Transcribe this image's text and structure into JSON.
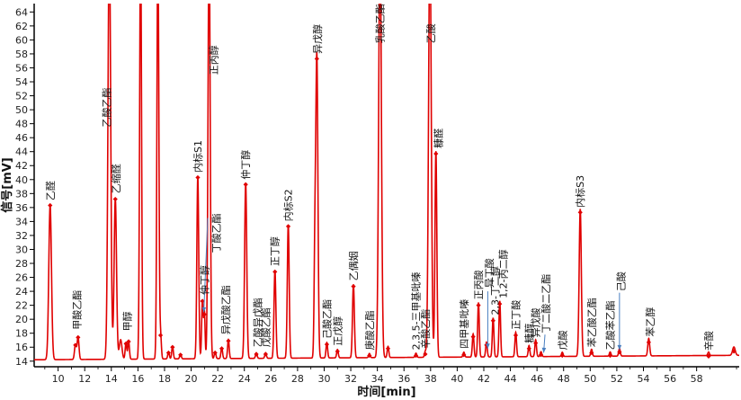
{
  "chart_data": {
    "type": "line",
    "title": "",
    "xlabel": "时间[min]",
    "ylabel": "信号[mV]",
    "xlim": [
      8.2,
      61.2
    ],
    "ylim": [
      13.2,
      65.2
    ],
    "x_ticks": [
      "10",
      "12",
      "14",
      "16",
      "18",
      "20",
      "22",
      "24",
      "26",
      "28",
      "30",
      "32",
      "34",
      "36",
      "38",
      "40",
      "42",
      "44",
      "46",
      "48",
      "50",
      "52",
      "54",
      "56",
      "58"
    ],
    "y_ticks": [
      "14",
      "16",
      "18",
      "20",
      "22",
      "24",
      "26",
      "28",
      "30",
      "32",
      "34",
      "36",
      "38",
      "40",
      "42",
      "44",
      "46",
      "48",
      "50",
      "52",
      "54",
      "56",
      "58",
      "60",
      "62",
      "64"
    ],
    "grid": false,
    "line_color": "#e00000",
    "marker_color": "#e00000",
    "arrow_color": "#4a7fc0",
    "baseline": 14.2,
    "peaks": [
      {
        "x": 9.4,
        "y": 36.3,
        "w": 0.1,
        "marker": true
      },
      {
        "x": 11.3,
        "y": 16.3,
        "w": 0.07,
        "marker": true
      },
      {
        "x": 11.5,
        "y": 17.4,
        "w": 0.07,
        "marker": true
      },
      {
        "x": 13.85,
        "y": 75,
        "w": 0.1,
        "marker": false
      },
      {
        "x": 14.3,
        "y": 37.2,
        "w": 0.09,
        "marker": true
      },
      {
        "x": 14.7,
        "y": 17.0,
        "w": 0.1,
        "marker": false
      },
      {
        "x": 15.1,
        "y": 16.5,
        "w": 0.06,
        "marker": true
      },
      {
        "x": 15.3,
        "y": 16.8,
        "w": 0.06,
        "marker": true
      },
      {
        "x": 16.2,
        "y": 75,
        "w": 0.07,
        "marker": false
      },
      {
        "x": 17.5,
        "y": 75,
        "w": 0.07,
        "marker": false
      },
      {
        "x": 17.7,
        "y": 17.7,
        "w": 0.06,
        "marker": true
      },
      {
        "x": 18.3,
        "y": 15.2,
        "w": 0.06,
        "marker": true
      },
      {
        "x": 18.6,
        "y": 16.0,
        "w": 0.06,
        "marker": true
      },
      {
        "x": 19.2,
        "y": 14.9,
        "w": 0.06,
        "marker": true
      },
      {
        "x": 20.5,
        "y": 40.3,
        "w": 0.07,
        "marker": true
      },
      {
        "x": 20.85,
        "y": 22.6,
        "w": 0.06,
        "marker": true
      },
      {
        "x": 21.0,
        "y": 20.7,
        "w": 0.05,
        "marker": true
      },
      {
        "x": 21.35,
        "y": 75,
        "w": 0.08,
        "marker": false
      },
      {
        "x": 21.8,
        "y": 15.2,
        "w": 0.06,
        "marker": true
      },
      {
        "x": 22.3,
        "y": 15.8,
        "w": 0.06,
        "marker": true
      },
      {
        "x": 22.8,
        "y": 16.9,
        "w": 0.06,
        "marker": true
      },
      {
        "x": 24.1,
        "y": 39.3,
        "w": 0.08,
        "marker": true
      },
      {
        "x": 24.9,
        "y": 15.0,
        "w": 0.06,
        "marker": true
      },
      {
        "x": 25.6,
        "y": 15.0,
        "w": 0.06,
        "marker": true
      },
      {
        "x": 26.3,
        "y": 26.8,
        "w": 0.07,
        "marker": true
      },
      {
        "x": 27.3,
        "y": 33.3,
        "w": 0.07,
        "marker": true
      },
      {
        "x": 29.3,
        "y": 28.0,
        "w": 0.06,
        "marker": false
      },
      {
        "x": 29.45,
        "y": 57.3,
        "w": 0.08,
        "marker": true
      },
      {
        "x": 30.2,
        "y": 16.4,
        "w": 0.06,
        "marker": true
      },
      {
        "x": 31.0,
        "y": 15.4,
        "w": 0.06,
        "marker": true
      },
      {
        "x": 32.2,
        "y": 24.7,
        "w": 0.07,
        "marker": true
      },
      {
        "x": 33.4,
        "y": 14.8,
        "w": 0.06,
        "marker": true
      },
      {
        "x": 34.2,
        "y": 75,
        "w": 0.1,
        "marker": false
      },
      {
        "x": 34.8,
        "y": 15.8,
        "w": 0.06,
        "marker": true
      },
      {
        "x": 36.9,
        "y": 14.8,
        "w": 0.06,
        "marker": true
      },
      {
        "x": 37.6,
        "y": 15.0,
        "w": 0.06,
        "marker": true
      },
      {
        "x": 37.95,
        "y": 75,
        "w": 0.1,
        "marker": false
      },
      {
        "x": 38.4,
        "y": 43.7,
        "w": 0.07,
        "marker": true
      },
      {
        "x": 40.5,
        "y": 14.9,
        "w": 0.06,
        "marker": true
      },
      {
        "x": 41.2,
        "y": 17.5,
        "w": 0.06,
        "marker": true
      },
      {
        "x": 41.6,
        "y": 22.0,
        "w": 0.06,
        "marker": true
      },
      {
        "x": 42.2,
        "y": 16.3,
        "w": 0.06,
        "marker": true
      },
      {
        "x": 42.7,
        "y": 19.8,
        "w": 0.06,
        "marker": true
      },
      {
        "x": 43.2,
        "y": 22.2,
        "w": 0.06,
        "marker": true
      },
      {
        "x": 44.4,
        "y": 17.7,
        "w": 0.06,
        "marker": true
      },
      {
        "x": 45.4,
        "y": 15.8,
        "w": 0.06,
        "marker": true
      },
      {
        "x": 45.9,
        "y": 16.6,
        "w": 0.06,
        "marker": true
      },
      {
        "x": 46.3,
        "y": 14.9,
        "w": 0.06,
        "marker": true
      },
      {
        "x": 47.9,
        "y": 14.8,
        "w": 0.06,
        "marker": true
      },
      {
        "x": 49.25,
        "y": 35.3,
        "w": 0.08,
        "marker": true
      },
      {
        "x": 50.1,
        "y": 15.2,
        "w": 0.06,
        "marker": true
      },
      {
        "x": 51.5,
        "y": 14.8,
        "w": 0.06,
        "marker": true
      },
      {
        "x": 52.2,
        "y": 15.3,
        "w": 0.06,
        "marker": true
      },
      {
        "x": 54.4,
        "y": 16.7,
        "w": 0.07,
        "marker": true
      },
      {
        "x": 58.9,
        "y": 14.7,
        "w": 0.06,
        "marker": true
      },
      {
        "x": 60.8,
        "y": 15.4,
        "w": 0.1,
        "marker": true
      }
    ],
    "annotations": [
      {
        "text": "乙醛",
        "x": 9.4,
        "y": 37.0
      },
      {
        "text": "甲酸乙酯",
        "x": 11.4,
        "y": 18.5
      },
      {
        "text": "乙酸乙酯",
        "x": 13.65,
        "y": 47.5
      },
      {
        "text": "乙缩醛",
        "x": 14.35,
        "y": 38.0
      },
      {
        "text": "甲醇",
        "x": 15.2,
        "y": 18.3
      },
      {
        "text": "内标S1",
        "x": 20.5,
        "y": 41.0
      },
      {
        "text": "仲丁醇",
        "x": 21.0,
        "y": 23.5
      },
      {
        "text": "丁酸乙酯",
        "x": 21.9,
        "y": 29.5
      },
      {
        "text": "正丙醇",
        "x": 21.7,
        "y": 55.0
      },
      {
        "text": "异戊酸乙酯",
        "x": 22.6,
        "y": 17.8
      },
      {
        "text": "仲丁醇",
        "x": 24.1,
        "y": 40.0
      },
      {
        "text": "乙酸异戊酯",
        "x": 25.0,
        "y": 16.0
      },
      {
        "text": "戊酸乙酯",
        "x": 25.6,
        "y": 16.0
      },
      {
        "text": "正丁醇",
        "x": 26.3,
        "y": 27.6
      },
      {
        "text": "内标S2",
        "x": 27.3,
        "y": 34.0
      },
      {
        "text": "异戊醇",
        "x": 29.5,
        "y": 58.0
      },
      {
        "text": "己酸乙酯",
        "x": 30.2,
        "y": 17.2
      },
      {
        "text": "正戊醇",
        "x": 31.0,
        "y": 16.2
      },
      {
        "text": "乙偶姻",
        "x": 32.2,
        "y": 25.5
      },
      {
        "text": "庚酸乙酯",
        "x": 33.4,
        "y": 15.6
      },
      {
        "text": "乳酸乙酯",
        "x": 34.2,
        "y": 59.5
      },
      {
        "text": "2,3,5-三甲基吡嗪",
        "x": 36.9,
        "y": 15.6
      },
      {
        "text": "辛酸乙酯",
        "x": 37.6,
        "y": 15.8
      },
      {
        "text": "乙酸",
        "x": 38.0,
        "y": 59.5
      },
      {
        "text": "糠醛",
        "x": 38.6,
        "y": 44.5
      },
      {
        "text": "四甲基吡嗪",
        "x": 40.5,
        "y": 15.8
      },
      {
        "text": "正丙酸",
        "x": 41.6,
        "y": 22.8
      },
      {
        "text": "异丁酸",
        "x": 42.4,
        "y": 24.5
      },
      {
        "text": "2,3-丁二醇",
        "x": 42.85,
        "y": 20.6
      },
      {
        "text": "1,2-丙二醇",
        "x": 43.45,
        "y": 23.0
      },
      {
        "text": "正丁酸",
        "x": 44.4,
        "y": 18.5
      },
      {
        "text": "糠醇",
        "x": 45.4,
        "y": 16.6
      },
      {
        "text": "异戊酸",
        "x": 45.9,
        "y": 17.4
      },
      {
        "text": "丁二酸二乙酯",
        "x": 46.65,
        "y": 18.0
      },
      {
        "text": "戊酸",
        "x": 47.9,
        "y": 15.6
      },
      {
        "text": "内标S3",
        "x": 49.25,
        "y": 36.0
      },
      {
        "text": "苯乙酸乙酯",
        "x": 50.1,
        "y": 16.0
      },
      {
        "text": "乙酸苯乙酯",
        "x": 51.5,
        "y": 15.6
      },
      {
        "text": "己酸",
        "x": 52.3,
        "y": 24.0
      },
      {
        "text": "苯乙醇",
        "x": 54.5,
        "y": 17.5
      },
      {
        "text": "辛酸",
        "x": 58.9,
        "y": 15.5
      }
    ],
    "arrows": [
      {
        "from": [
          21.25,
          34.5
        ],
        "to": [
          20.95,
          21.0
        ]
      },
      {
        "from": [
          42.3,
          24.0
        ],
        "to": [
          42.3,
          15.8
        ]
      },
      {
        "from": [
          46.6,
          17.8
        ],
        "to": [
          46.5,
          15.2
        ]
      },
      {
        "from": [
          52.2,
          23.8
        ],
        "to": [
          52.2,
          15.6
        ]
      }
    ]
  }
}
